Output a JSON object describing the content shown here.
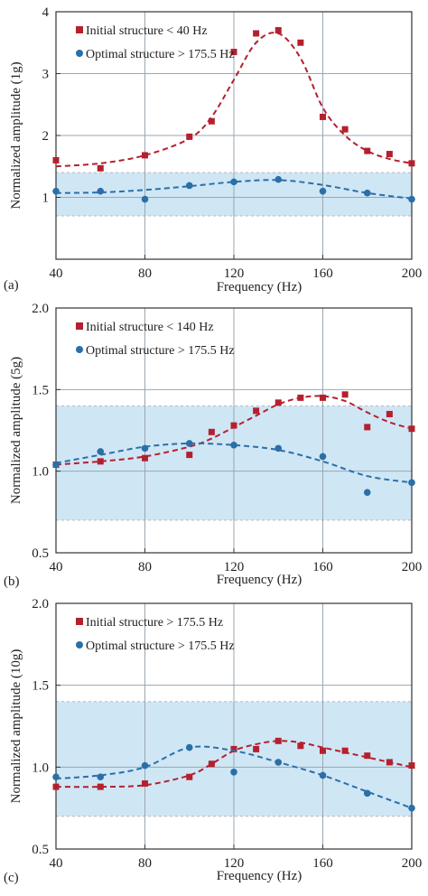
{
  "colors": {
    "initial": "#b5202e",
    "optimal": "#2a6fa8",
    "band": "#cfe6f5"
  },
  "chart_data": [
    {
      "type": "scatter",
      "panel_label": "(a)",
      "xlabel": "Frequency (Hz)",
      "ylabel": "Normalized amplitude (1g)",
      "xlim": [
        40,
        200
      ],
      "ylim": [
        0,
        4
      ],
      "xticks": [
        40,
        80,
        120,
        160,
        200
      ],
      "yticks": [
        1,
        2,
        3,
        4
      ],
      "band": [
        0.7,
        1.4
      ],
      "grid": true,
      "legend_position": "top-left",
      "series": [
        {
          "name": "Initial structure < 40 Hz",
          "marker": "square",
          "x": [
            40,
            60,
            80,
            100,
            110,
            120,
            130,
            140,
            150,
            160,
            170,
            180,
            190,
            200
          ],
          "y": [
            1.6,
            1.47,
            1.68,
            1.98,
            2.23,
            3.35,
            3.65,
            3.7,
            3.5,
            2.3,
            2.1,
            1.75,
            1.7,
            1.55
          ],
          "fit_x": [
            40,
            60,
            80,
            100,
            110,
            120,
            130,
            140,
            150,
            160,
            170,
            180,
            190,
            200
          ],
          "fit_y": [
            1.5,
            1.55,
            1.68,
            1.95,
            2.3,
            2.9,
            3.5,
            3.65,
            3.25,
            2.45,
            2.0,
            1.75,
            1.62,
            1.55
          ]
        },
        {
          "name": "Optimal structure > 175.5 Hz",
          "marker": "circle",
          "x": [
            40,
            60,
            80,
            100,
            120,
            140,
            160,
            180,
            200
          ],
          "y": [
            1.1,
            1.1,
            0.97,
            1.19,
            1.25,
            1.29,
            1.1,
            1.07,
            0.97
          ],
          "fit_x": [
            40,
            60,
            80,
            100,
            120,
            140,
            160,
            180,
            200
          ],
          "fit_y": [
            1.07,
            1.08,
            1.12,
            1.18,
            1.25,
            1.28,
            1.2,
            1.07,
            0.98
          ]
        }
      ]
    },
    {
      "type": "scatter",
      "panel_label": "(b)",
      "xlabel": "Frequency (Hz)",
      "ylabel": "Normalized amplitude (5g)",
      "xlim": [
        40,
        200
      ],
      "ylim": [
        0.5,
        2.0
      ],
      "xticks": [
        40,
        80,
        120,
        160,
        200
      ],
      "yticks": [
        0.5,
        1.0,
        1.5,
        2.0
      ],
      "band": [
        0.7,
        1.4
      ],
      "grid": true,
      "legend_position": "top-left",
      "series": [
        {
          "name": "Initial structure < 140 Hz",
          "marker": "square",
          "x": [
            40,
            60,
            80,
            100,
            110,
            120,
            130,
            140,
            150,
            160,
            170,
            180,
            190,
            200
          ],
          "y": [
            1.04,
            1.06,
            1.08,
            1.1,
            1.24,
            1.28,
            1.37,
            1.42,
            1.45,
            1.45,
            1.47,
            1.27,
            1.35,
            1.26
          ],
          "fit_x": [
            40,
            60,
            80,
            100,
            110,
            120,
            130,
            140,
            150,
            160,
            170,
            180,
            190,
            200
          ],
          "fit_y": [
            1.04,
            1.06,
            1.09,
            1.15,
            1.2,
            1.27,
            1.34,
            1.41,
            1.45,
            1.46,
            1.43,
            1.36,
            1.3,
            1.26
          ]
        },
        {
          "name": "Optimal structure > 175.5 Hz",
          "marker": "circle",
          "x": [
            40,
            60,
            80,
            100,
            120,
            140,
            160,
            180,
            200
          ],
          "y": [
            1.04,
            1.12,
            1.14,
            1.17,
            1.16,
            1.14,
            1.09,
            0.87,
            0.93
          ],
          "fit_x": [
            40,
            60,
            80,
            100,
            120,
            140,
            160,
            180,
            200
          ],
          "fit_y": [
            1.05,
            1.1,
            1.15,
            1.17,
            1.16,
            1.13,
            1.06,
            0.97,
            0.93
          ]
        }
      ]
    },
    {
      "type": "scatter",
      "panel_label": "(c)",
      "xlabel": "Frequency (Hz)",
      "ylabel": "Normalized amplitude (10g)",
      "xlim": [
        40,
        200
      ],
      "ylim": [
        0.5,
        2.0
      ],
      "xticks": [
        40,
        80,
        120,
        160,
        200
      ],
      "yticks": [
        0.5,
        1.0,
        1.5,
        2.0
      ],
      "band": [
        0.7,
        1.4
      ],
      "grid": true,
      "legend_position": "top-left",
      "series": [
        {
          "name": "Initial structure > 175.5 Hz",
          "marker": "square",
          "x": [
            40,
            60,
            80,
            100,
            110,
            120,
            130,
            140,
            150,
            160,
            170,
            180,
            190,
            200
          ],
          "y": [
            0.88,
            0.88,
            0.9,
            0.94,
            1.02,
            1.11,
            1.11,
            1.16,
            1.13,
            1.1,
            1.1,
            1.07,
            1.03,
            1.01
          ],
          "fit_x": [
            40,
            60,
            80,
            100,
            110,
            120,
            130,
            140,
            150,
            160,
            170,
            180,
            190,
            200
          ],
          "fit_y": [
            0.88,
            0.88,
            0.89,
            0.95,
            1.02,
            1.1,
            1.14,
            1.16,
            1.15,
            1.12,
            1.09,
            1.06,
            1.03,
            1.0
          ]
        },
        {
          "name": "Optimal structure > 175.5 Hz",
          "marker": "circle",
          "x": [
            40,
            60,
            80,
            100,
            120,
            140,
            160,
            180,
            200
          ],
          "y": [
            0.94,
            0.94,
            1.01,
            1.12,
            0.97,
            1.03,
            0.95,
            0.84,
            0.75
          ],
          "fit_x": [
            40,
            60,
            80,
            100,
            120,
            140,
            160,
            180,
            200
          ],
          "fit_y": [
            0.93,
            0.95,
            1.0,
            1.12,
            1.1,
            1.03,
            0.95,
            0.85,
            0.75
          ]
        }
      ]
    }
  ]
}
